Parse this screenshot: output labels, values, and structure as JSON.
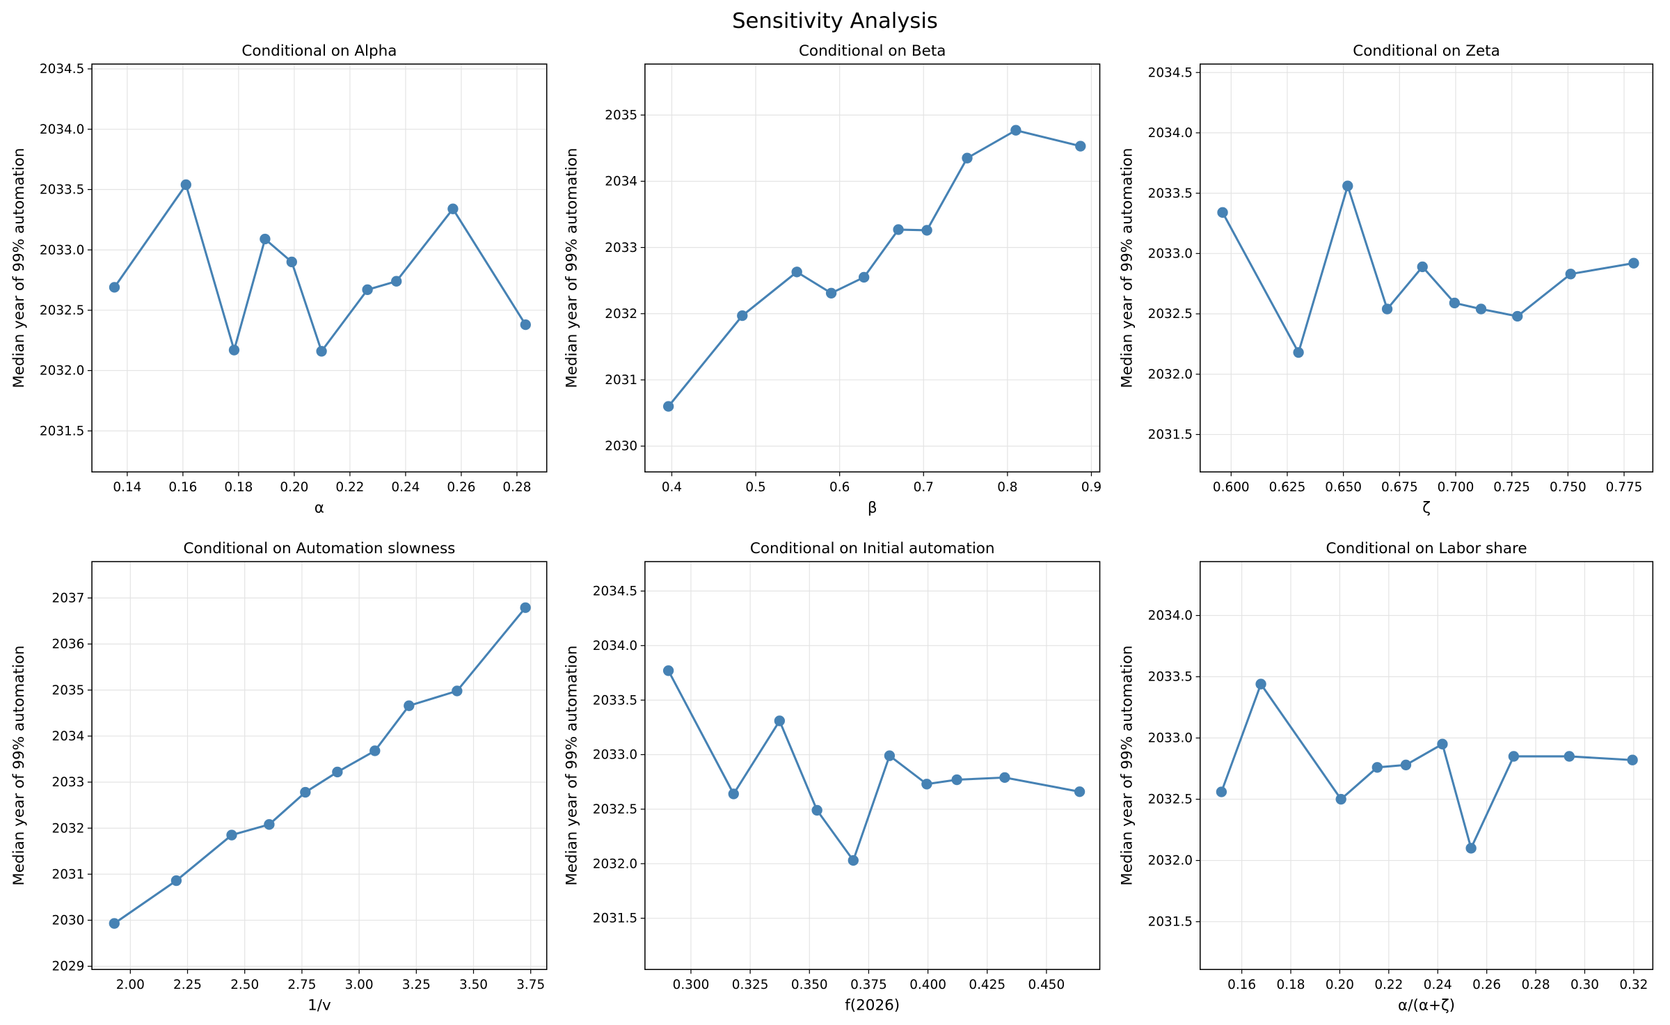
{
  "title": "Sensitivity Analysis",
  "chart_data": [
    {
      "type": "line",
      "title": "Conditional on Alpha",
      "xlabel": "α",
      "ylabel": "Median year of 99% automation",
      "color": "#4682b4",
      "grid": true,
      "x": [
        0.1354,
        0.1611,
        0.1784,
        0.1895,
        0.1991,
        0.2098,
        0.2263,
        0.2367,
        0.257,
        0.2831
      ],
      "values": [
        2032.69,
        2033.54,
        2032.17,
        2033.09,
        2032.9,
        2032.16,
        2032.67,
        2032.74,
        2033.34,
        2032.38
      ],
      "xlim": [
        0.1273,
        0.2907
      ],
      "ylim": [
        2031.16,
        2034.54
      ],
      "xticks": [
        0.14,
        0.16,
        0.18,
        {
          "value": 0.2,
          "label": "0.20"
        },
        0.22,
        0.24,
        0.26,
        0.28
      ],
      "yticks": [
        2031.5,
        {
          "value": 2032,
          "label": "2032.0"
        },
        2032.5,
        {
          "value": 2033,
          "label": "2033.0"
        },
        2033.5,
        {
          "value": 2034,
          "label": "2034.0"
        },
        2034.5
      ]
    },
    {
      "type": "line",
      "title": "Conditional on Beta",
      "xlabel": "β",
      "ylabel": "Median year of 99% automation",
      "color": "#4682b4",
      "grid": true,
      "x": [
        0.396,
        0.484,
        0.549,
        0.59,
        0.629,
        0.67,
        0.704,
        0.752,
        0.81,
        0.887
      ],
      "values": [
        2030.6,
        2031.97,
        2032.63,
        2032.31,
        2032.55,
        2033.27,
        2033.26,
        2034.35,
        2034.77,
        2034.53
      ],
      "xlim": [
        0.368,
        0.91
      ],
      "ylim": [
        2029.61,
        2035.77
      ],
      "xticks": [
        0.4,
        0.5,
        0.6,
        0.7,
        0.8,
        0.9
      ],
      "yticks": [
        2030,
        2031,
        2032,
        2033,
        2034,
        2035
      ]
    },
    {
      "type": "line",
      "title": "Conditional on Zeta",
      "xlabel": "ζ",
      "ylabel": "Median year of 99% automation",
      "color": "#4682b4",
      "grid": true,
      "x": [
        0.5962,
        0.63,
        0.6519,
        0.6695,
        0.6852,
        0.6995,
        0.7113,
        0.7275,
        0.7512,
        0.7793
      ],
      "values": [
        2033.34,
        2032.18,
        2033.56,
        2032.54,
        2032.89,
        2032.59,
        2032.54,
        2032.48,
        2032.83,
        2032.92
      ],
      "xlim": [
        0.5862,
        0.7878
      ],
      "ylim": [
        2031.19,
        2034.57
      ],
      "xticks": [
        {
          "value": 0.6,
          "label": "0.600"
        },
        0.625,
        {
          "value": 0.65,
          "label": "0.650"
        },
        0.675,
        {
          "value": 0.7,
          "label": "0.700"
        },
        0.725,
        {
          "value": 0.75,
          "label": "0.750"
        },
        0.775
      ],
      "yticks": [
        2031.5,
        {
          "value": 2032,
          "label": "2032.0"
        },
        2032.5,
        {
          "value": 2033,
          "label": "2033.0"
        },
        2033.5,
        {
          "value": 2034,
          "label": "2034.0"
        },
        2034.5
      ]
    },
    {
      "type": "line",
      "title": "Conditional on Automation slowness",
      "xlabel": "1/v",
      "ylabel": "Median year of 99% automation",
      "color": "#4682b4",
      "grid": true,
      "x": [
        1.93,
        2.201,
        2.443,
        2.607,
        2.765,
        2.905,
        3.069,
        3.218,
        3.428,
        3.727
      ],
      "values": [
        2029.93,
        2030.86,
        2031.85,
        2032.08,
        2032.78,
        2033.22,
        2033.68,
        2034.66,
        2034.98,
        2036.79
      ],
      "xlim": [
        1.832,
        3.82
      ],
      "ylim": [
        2028.93,
        2037.79
      ],
      "xticks": [
        {
          "value": 2,
          "label": "2.00"
        },
        2.25,
        {
          "value": 2.5,
          "label": "2.50"
        },
        2.75,
        {
          "value": 3,
          "label": "3.00"
        },
        3.25,
        {
          "value": 3.5,
          "label": "3.50"
        },
        3.75
      ],
      "yticks": [
        2029,
        2030,
        2031,
        2032,
        2033,
        2034,
        2035,
        2036,
        2037
      ]
    },
    {
      "type": "line",
      "title": "Conditional on Initial automation",
      "xlabel": "f(2026)",
      "ylabel": "Median year of 99% automation",
      "color": "#4682b4",
      "grid": true,
      "x": [
        0.2905,
        0.318,
        0.3374,
        0.3532,
        0.3685,
        0.3838,
        0.3995,
        0.4122,
        0.4324,
        0.464
      ],
      "values": [
        2033.77,
        2032.64,
        2033.31,
        2032.49,
        2032.03,
        2032.99,
        2032.73,
        2032.77,
        2032.79,
        2032.66
      ],
      "xlim": [
        0.2806,
        0.4725
      ],
      "ylim": [
        2031.03,
        2034.77
      ],
      "xticks": [
        {
          "value": 0.3,
          "label": "0.300"
        },
        0.325,
        {
          "value": 0.35,
          "label": "0.350"
        },
        0.375,
        {
          "value": 0.4,
          "label": "0.400"
        },
        0.425,
        {
          "value": 0.45,
          "label": "0.450"
        }
      ],
      "yticks": [
        2031.5,
        {
          "value": 2032,
          "label": "2032.0"
        },
        2032.5,
        {
          "value": 2033,
          "label": "2033.0"
        },
        2033.5,
        {
          "value": 2034,
          "label": "2034.0"
        },
        2034.5
      ]
    },
    {
      "type": "line",
      "title": "Conditional on Labor share",
      "xlabel": "α/(α+ζ)",
      "ylabel": "Median year of 99% automation",
      "color": "#4682b4",
      "grid": true,
      "x": [
        0.1517,
        0.1678,
        0.2005,
        0.2153,
        0.227,
        0.2419,
        0.2536,
        0.271,
        0.2937,
        0.3195
      ],
      "values": [
        2032.56,
        2033.44,
        2032.5,
        2032.76,
        2032.78,
        2032.95,
        2032.1,
        2032.85,
        2032.85,
        2032.82
      ],
      "xlim": [
        0.143,
        0.3278
      ],
      "ylim": [
        2031.11,
        2034.44
      ],
      "xticks": [
        0.16,
        0.18,
        {
          "value": 0.2,
          "label": "0.20"
        },
        0.22,
        0.24,
        0.26,
        0.28,
        {
          "value": 0.3,
          "label": "0.30"
        },
        0.32
      ],
      "yticks": [
        2031.5,
        {
          "value": 2032,
          "label": "2032.0"
        },
        2032.5,
        {
          "value": 2033,
          "label": "2033.0"
        },
        2033.5,
        {
          "value": 2034,
          "label": "2034.0"
        }
      ]
    }
  ]
}
